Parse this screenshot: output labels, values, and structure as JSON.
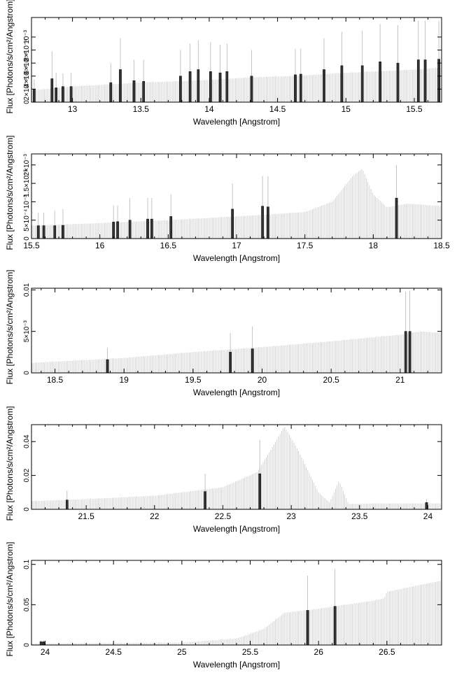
{
  "chart_data": [
    {
      "type": "bar",
      "xlabel": "Wavelength [Angstrom]",
      "ylabel": "Flux [Photons/s/cm²/Angstrom]",
      "xlim": [
        12.7,
        15.7
      ],
      "ylim": [
        0,
        0.0013
      ],
      "xticks": [
        {
          "v": 13,
          "label": "13"
        },
        {
          "v": 13.5,
          "label": "13.5"
        },
        {
          "v": 14,
          "label": "14"
        },
        {
          "v": 14.5,
          "label": "14.5"
        },
        {
          "v": 15,
          "label": "15"
        },
        {
          "v": 15.5,
          "label": "15.5"
        }
      ],
      "yticks": [
        {
          "v": 0,
          "label": "0"
        },
        {
          "v": 0.0002,
          "label": "2×10⁻⁴"
        },
        {
          "v": 0.0004,
          "label": "4×10⁻⁴"
        },
        {
          "v": 0.0006,
          "label": "6×10⁻⁴"
        },
        {
          "v": 0.0008,
          "label": "8×10⁻⁴"
        },
        {
          "v": 0.001,
          "label": "10⁻³"
        }
      ],
      "continuum": [
        [
          12.7,
          0.00018
        ],
        [
          13.0,
          0.00024
        ],
        [
          13.5,
          0.0003
        ],
        [
          14.0,
          0.00034
        ],
        [
          14.3,
          0.00038
        ],
        [
          14.6,
          0.0004
        ],
        [
          15.0,
          0.00045
        ],
        [
          15.5,
          0.0005
        ],
        [
          15.7,
          0.00053
        ]
      ],
      "lines": [
        {
          "x": 12.72,
          "y": 0.0002,
          "err": 0.00035
        },
        {
          "x": 12.85,
          "y": 0.00036,
          "err": 0.00078
        },
        {
          "x": 12.88,
          "y": 0.00022,
          "err": 0.00045
        },
        {
          "x": 12.93,
          "y": 0.00024,
          "err": 0.00044
        },
        {
          "x": 12.99,
          "y": 0.00024,
          "err": 0.00045
        },
        {
          "x": 13.28,
          "y": 0.0003,
          "err": 0.0006
        },
        {
          "x": 13.35,
          "y": 0.0005,
          "err": 0.00098
        },
        {
          "x": 13.45,
          "y": 0.00033,
          "err": 0.00065
        },
        {
          "x": 13.52,
          "y": 0.00032,
          "err": 0.00065
        },
        {
          "x": 13.79,
          "y": 0.0004,
          "err": 0.0008
        },
        {
          "x": 13.86,
          "y": 0.00047,
          "err": 0.0009
        },
        {
          "x": 13.92,
          "y": 0.0005,
          "err": 0.00095
        },
        {
          "x": 14.01,
          "y": 0.00047,
          "err": 0.00092
        },
        {
          "x": 14.08,
          "y": 0.00045,
          "err": 0.00088
        },
        {
          "x": 14.13,
          "y": 0.00047,
          "err": 0.0009
        },
        {
          "x": 14.31,
          "y": 0.0004,
          "err": 0.0008
        },
        {
          "x": 14.63,
          "y": 0.00042,
          "err": 0.00082
        },
        {
          "x": 14.67,
          "y": 0.00043,
          "err": 0.00082
        },
        {
          "x": 14.84,
          "y": 0.0005,
          "err": 0.00098
        },
        {
          "x": 14.97,
          "y": 0.00056,
          "err": 0.00108
        },
        {
          "x": 15.12,
          "y": 0.00056,
          "err": 0.0011
        },
        {
          "x": 15.25,
          "y": 0.00062,
          "err": 0.0012
        },
        {
          "x": 15.38,
          "y": 0.0006,
          "err": 0.00118
        },
        {
          "x": 15.53,
          "y": 0.00065,
          "err": 0.00125
        },
        {
          "x": 15.58,
          "y": 0.00065,
          "err": 0.00125
        },
        {
          "x": 15.68,
          "y": 0.00066,
          "err": 0.00125
        }
      ]
    },
    {
      "type": "bar",
      "xlabel": "Wavelength [Angstrom]",
      "ylabel": "Flux [Photons/s/cm²/Angstrom]",
      "xlim": [
        15.5,
        18.5
      ],
      "ylim": [
        0,
        0.0023
      ],
      "xticks": [
        {
          "v": 15.5,
          "label": "15.5"
        },
        {
          "v": 16,
          "label": "16"
        },
        {
          "v": 16.5,
          "label": "16.5"
        },
        {
          "v": 17,
          "label": "17"
        },
        {
          "v": 17.5,
          "label": "17.5"
        },
        {
          "v": 18,
          "label": "18"
        },
        {
          "v": 18.5,
          "label": "18.5"
        }
      ],
      "yticks": [
        {
          "v": 0,
          "label": "0"
        },
        {
          "v": 0.0005,
          "label": "5×10⁻⁴"
        },
        {
          "v": 0.001,
          "label": "10⁻³"
        },
        {
          "v": 0.0015,
          "label": "1.5×10⁻³"
        },
        {
          "v": 0.002,
          "label": "2×10⁻³"
        }
      ],
      "continuum": [
        [
          15.5,
          0.00035
        ],
        [
          16.0,
          0.00042
        ],
        [
          16.5,
          0.0005
        ],
        [
          17.0,
          0.0006
        ],
        [
          17.5,
          0.00072
        ],
        [
          17.7,
          0.001
        ],
        [
          17.85,
          0.0017
        ],
        [
          17.92,
          0.0019
        ],
        [
          18.0,
          0.0012
        ],
        [
          18.1,
          0.00085
        ],
        [
          18.25,
          0.00095
        ],
        [
          18.5,
          0.00088
        ]
      ],
      "lines": [
        {
          "x": 15.55,
          "y": 0.00035,
          "err": 0.0007
        },
        {
          "x": 15.59,
          "y": 0.00035,
          "err": 0.0007
        },
        {
          "x": 15.67,
          "y": 0.00035,
          "err": 0.00075
        },
        {
          "x": 15.73,
          "y": 0.00036,
          "err": 0.0008
        },
        {
          "x": 16.1,
          "y": 0.00045,
          "err": 0.0009
        },
        {
          "x": 16.13,
          "y": 0.00046,
          "err": 0.0009
        },
        {
          "x": 16.22,
          "y": 0.0005,
          "err": 0.0011
        },
        {
          "x": 16.35,
          "y": 0.00053,
          "err": 0.0011
        },
        {
          "x": 16.38,
          "y": 0.00053,
          "err": 0.0011
        },
        {
          "x": 16.52,
          "y": 0.0006,
          "err": 0.0012
        },
        {
          "x": 16.97,
          "y": 0.0008,
          "err": 0.0015
        },
        {
          "x": 17.19,
          "y": 0.00088,
          "err": 0.0017
        },
        {
          "x": 17.23,
          "y": 0.00086,
          "err": 0.0017
        },
        {
          "x": 18.17,
          "y": 0.0011,
          "err": 0.002
        }
      ]
    },
    {
      "type": "bar",
      "xlabel": "Wavelength [Angstrom]",
      "ylabel": "Flux [Photons/s/cm²/Angstrom]",
      "xlim": [
        18.33,
        21.3
      ],
      "ylim": [
        0,
        0.0102
      ],
      "xticks": [
        {
          "v": 18.5,
          "label": "18.5"
        },
        {
          "v": 19,
          "label": "19"
        },
        {
          "v": 19.5,
          "label": "19.5"
        },
        {
          "v": 20,
          "label": "20"
        },
        {
          "v": 20.5,
          "label": "20.5"
        },
        {
          "v": 21,
          "label": "21"
        }
      ],
      "yticks": [
        {
          "v": 0,
          "label": "0"
        },
        {
          "v": 0.005,
          "label": "5×10⁻³"
        },
        {
          "v": 0.01,
          "label": "0.01"
        }
      ],
      "continuum": [
        [
          18.33,
          0.0012
        ],
        [
          19.0,
          0.0018
        ],
        [
          19.5,
          0.0025
        ],
        [
          20.0,
          0.0031
        ],
        [
          20.5,
          0.0038
        ],
        [
          21.0,
          0.0046
        ],
        [
          21.15,
          0.005
        ],
        [
          21.3,
          0.0048
        ]
      ],
      "lines": [
        {
          "x": 18.88,
          "y": 0.0016,
          "err": 0.003
        },
        {
          "x": 19.77,
          "y": 0.0025,
          "err": 0.0048
        },
        {
          "x": 19.93,
          "y": 0.0029,
          "err": 0.0056
        },
        {
          "x": 21.04,
          "y": 0.005,
          "err": 0.0098
        },
        {
          "x": 21.07,
          "y": 0.005,
          "err": 0.0099
        }
      ]
    },
    {
      "type": "bar",
      "xlabel": "Wavelength [Angstrom]",
      "ylabel": "Flux [Photons/s/cm²/Angstrom]",
      "xlim": [
        21.1,
        24.1
      ],
      "ylim": [
        0,
        0.05
      ],
      "xticks": [
        {
          "v": 21.5,
          "label": "21.5"
        },
        {
          "v": 22,
          "label": "22"
        },
        {
          "v": 22.5,
          "label": "22.5"
        },
        {
          "v": 23,
          "label": "23"
        },
        {
          "v": 23.5,
          "label": "23.5"
        },
        {
          "v": 24,
          "label": "24"
        }
      ],
      "yticks": [
        {
          "v": 0,
          "label": "0"
        },
        {
          "v": 0.02,
          "label": "0.02"
        },
        {
          "v": 0.04,
          "label": "0.04"
        }
      ],
      "continuum": [
        [
          21.1,
          0.0048
        ],
        [
          21.5,
          0.006
        ],
        [
          22.0,
          0.008
        ],
        [
          22.5,
          0.013
        ],
        [
          22.75,
          0.022
        ],
        [
          22.85,
          0.035
        ],
        [
          22.95,
          0.049
        ],
        [
          23.05,
          0.035
        ],
        [
          23.2,
          0.01
        ],
        [
          23.28,
          0.004
        ],
        [
          23.35,
          0.017
        ],
        [
          23.42,
          0.003
        ],
        [
          23.6,
          0.0035
        ],
        [
          24.1,
          0.0035
        ]
      ],
      "lines": [
        {
          "x": 21.36,
          "y": 0.0055,
          "err": 0.011
        },
        {
          "x": 22.37,
          "y": 0.0105,
          "err": 0.021
        },
        {
          "x": 22.77,
          "y": 0.021,
          "err": 0.041
        },
        {
          "x": 23.99,
          "y": 0.004,
          "err": 0.006
        }
      ]
    },
    {
      "type": "bar",
      "xlabel": "Wavelength [Angstrom]",
      "ylabel": "Flux [Photons/s/cm²/Angstrom]",
      "xlim": [
        23.9,
        26.9
      ],
      "ylim": [
        0,
        0.105
      ],
      "xticks": [
        {
          "v": 24,
          "label": "24"
        },
        {
          "v": 24.5,
          "label": "24.5"
        },
        {
          "v": 25,
          "label": "25"
        },
        {
          "v": 25.5,
          "label": "25.5"
        },
        {
          "v": 26,
          "label": "26"
        },
        {
          "v": 26.5,
          "label": "26.5"
        }
      ],
      "yticks": [
        {
          "v": 0,
          "label": "0"
        },
        {
          "v": 0.05,
          "label": "0.05"
        },
        {
          "v": 0.1,
          "label": "0.1"
        }
      ],
      "continuum": [
        [
          23.9,
          0.002
        ],
        [
          25.0,
          0.003
        ],
        [
          25.4,
          0.008
        ],
        [
          25.6,
          0.02
        ],
        [
          25.75,
          0.04
        ],
        [
          26.0,
          0.045
        ],
        [
          26.4,
          0.055
        ],
        [
          26.48,
          0.058
        ],
        [
          26.5,
          0.066
        ],
        [
          26.9,
          0.08
        ]
      ],
      "lines": [
        {
          "x": 23.97,
          "y": 0.004,
          "err": 0.006
        },
        {
          "x": 23.99,
          "y": 0.004,
          "err": 0.006
        },
        {
          "x": 25.92,
          "y": 0.043,
          "err": 0.086
        },
        {
          "x": 26.12,
          "y": 0.048,
          "err": 0.094
        }
      ]
    }
  ]
}
